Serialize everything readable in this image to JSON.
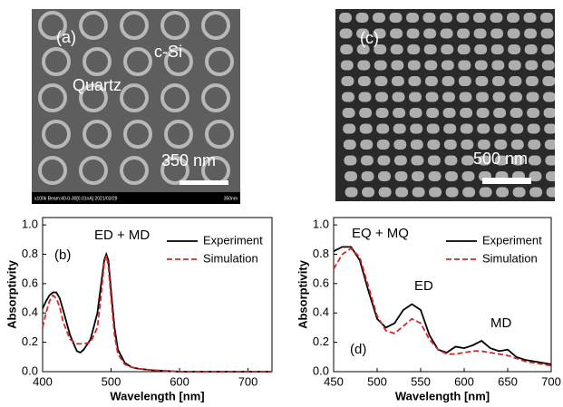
{
  "images": [
    {
      "labels": [
        "(a)",
        "c-Si",
        "Quartz",
        "350 nm"
      ],
      "footer": "x100k Beam:40-0-30[0.01nA] 2021/03/29",
      "footer_scale": "350nm"
    },
    {
      "labels": [
        "(c)",
        "500 nm"
      ]
    }
  ],
  "chart_data": [
    {
      "type": "line",
      "xlabel": "Wavelength [nm]",
      "ylabel": "Absorptivity",
      "annotations": [
        "(b)",
        "ED + MD"
      ],
      "x": [
        400,
        405,
        410,
        415,
        420,
        425,
        430,
        440,
        450,
        455,
        460,
        470,
        480,
        485,
        490,
        493,
        496,
        500,
        505,
        510,
        520,
        530,
        540,
        560,
        600,
        650,
        700,
        735
      ],
      "series": [
        {
          "name": "Experiment",
          "color": "#000000",
          "linestyle": "solid",
          "values": [
            0.43,
            0.48,
            0.52,
            0.54,
            0.54,
            0.5,
            0.42,
            0.25,
            0.14,
            0.13,
            0.15,
            0.22,
            0.4,
            0.58,
            0.76,
            0.8,
            0.76,
            0.55,
            0.3,
            0.15,
            0.06,
            0.03,
            0.02,
            0.01,
            0,
            0,
            0,
            0
          ]
        },
        {
          "name": "Simulation",
          "color": "#d62728",
          "linestyle": "dashed",
          "values": [
            0.3,
            0.4,
            0.48,
            0.52,
            0.5,
            0.44,
            0.34,
            0.22,
            0.19,
            0.19,
            0.19,
            0.2,
            0.3,
            0.5,
            0.74,
            0.79,
            0.72,
            0.5,
            0.25,
            0.12,
            0.05,
            0.03,
            0.02,
            0.01,
            0,
            0,
            0,
            0
          ]
        }
      ],
      "xlim": [
        400,
        735
      ],
      "xticks": [
        400,
        500,
        600,
        700
      ],
      "ylim": [
        0,
        1.05
      ],
      "yticks": [
        {
          "value": 0,
          "label": "0.0"
        },
        0.2,
        0.4,
        0.6,
        0.8,
        {
          "value": 1,
          "label": "1.0"
        }
      ],
      "legend": "upper right"
    },
    {
      "type": "line",
      "xlabel": "Wavelength [nm]",
      "ylabel": "Absorptivity",
      "annotations": [
        "EQ + MQ",
        "ED",
        "MD",
        "(d)"
      ],
      "x": [
        450,
        460,
        470,
        480,
        490,
        500,
        510,
        520,
        530,
        540,
        550,
        560,
        570,
        580,
        590,
        600,
        610,
        620,
        630,
        640,
        650,
        660,
        670,
        680,
        690,
        700
      ],
      "series": [
        {
          "name": "Experiment",
          "color": "#000000",
          "linestyle": "solid",
          "values": [
            0.82,
            0.85,
            0.85,
            0.76,
            0.55,
            0.36,
            0.3,
            0.33,
            0.42,
            0.46,
            0.42,
            0.25,
            0.15,
            0.13,
            0.17,
            0.16,
            0.18,
            0.21,
            0.16,
            0.14,
            0.15,
            0.1,
            0.08,
            0.07,
            0.06,
            0.05
          ]
        },
        {
          "name": "Simulation",
          "color": "#d62728",
          "linestyle": "dashed",
          "values": [
            0.7,
            0.8,
            0.84,
            0.78,
            0.58,
            0.38,
            0.28,
            0.26,
            0.31,
            0.36,
            0.33,
            0.22,
            0.15,
            0.12,
            0.12,
            0.13,
            0.14,
            0.14,
            0.13,
            0.12,
            0.11,
            0.09,
            0.07,
            0.06,
            0.05,
            0.04
          ]
        }
      ],
      "xlim": [
        450,
        700
      ],
      "xticks": [
        450,
        500,
        550,
        600,
        650,
        700
      ],
      "ylim": [
        0,
        1.05
      ],
      "yticks": [
        {
          "value": 0,
          "label": "0.0"
        },
        0.2,
        0.4,
        0.6,
        0.8,
        {
          "value": 1,
          "label": "1.0"
        }
      ],
      "legend": "upper right"
    }
  ]
}
